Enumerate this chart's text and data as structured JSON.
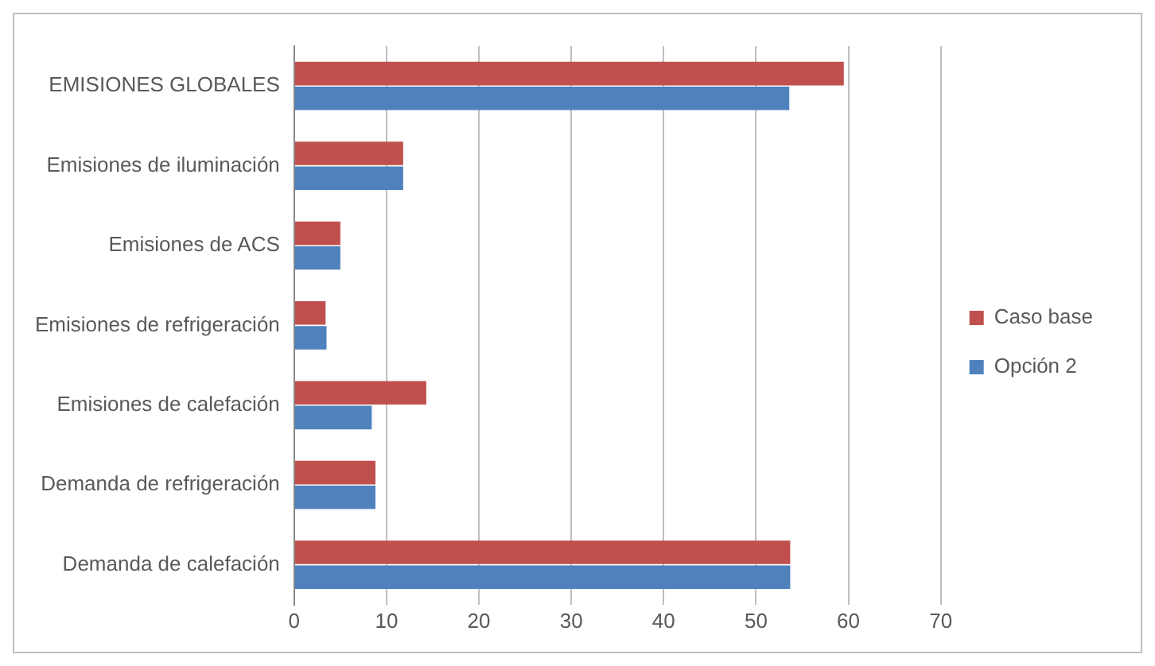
{
  "chart_data": {
    "type": "bar",
    "orientation": "horizontal",
    "categories": [
      "EMISIONES GLOBALES",
      "Emisiones de iluminación",
      "Emisiones de ACS",
      "Emisiones de refrigeración",
      "Emisiones de calefación",
      "Demanda de refrigeración",
      "Demanda de calefación"
    ],
    "series": [
      {
        "name": "Caso base",
        "color": "#c0504d",
        "values": [
          59.5,
          11.8,
          5.0,
          3.4,
          14.3,
          8.8,
          53.7
        ]
      },
      {
        "name": "Opción 2",
        "color": "#4f81bd",
        "values": [
          53.6,
          11.8,
          5.0,
          3.5,
          8.4,
          8.8,
          53.7
        ]
      }
    ],
    "xlim": [
      0,
      70
    ],
    "xticks": [
      0,
      10,
      20,
      30,
      40,
      50,
      60,
      70
    ],
    "grid": "x",
    "legend": "right"
  }
}
